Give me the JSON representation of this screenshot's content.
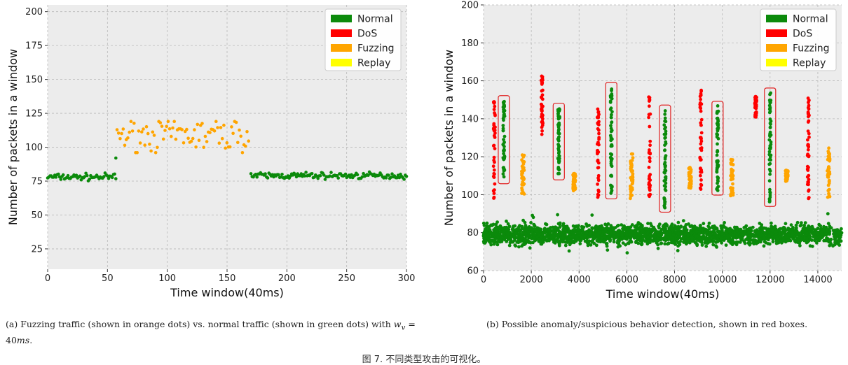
{
  "chart_data": [
    {
      "type": "scatter",
      "title": "",
      "xlabel": "Time window(40ms)",
      "ylabel": "Number of packets in a window",
      "xlim": [
        0,
        300
      ],
      "ylim": [
        10,
        205
      ],
      "xticks": [
        0,
        50,
        100,
        150,
        200,
        250,
        300
      ],
      "yticks": [
        25,
        50,
        75,
        100,
        125,
        150,
        175,
        200
      ],
      "grid": true,
      "legend": "top-right",
      "legend_entries": [
        "Normal",
        "DoS",
        "Fuzzing",
        "Replay"
      ],
      "colors": {
        "Normal": "#0b8a0b",
        "DoS": "#ff0000",
        "Fuzzing": "#ffa500",
        "Replay": "#ffff00"
      },
      "series": [
        {
          "name": "Normal",
          "x_range": [
            0,
            57
          ],
          "y_center": 78,
          "y_spread": 2,
          "count": 58,
          "extra_points": [
            [
              57,
              92
            ]
          ]
        },
        {
          "name": "Fuzzing",
          "x_range": [
            58,
            168
          ],
          "y_center": 109,
          "y_spread": 10,
          "count": 86,
          "y_min": 96,
          "y_max": 119
        },
        {
          "name": "Normal",
          "x_range": [
            170,
            300
          ],
          "y_center": 79,
          "y_spread": 2,
          "count": 131,
          "y_min": 75,
          "y_max": 82
        }
      ],
      "caption_text": "(a) Fuzzing traffic (shown in orange dots) vs. normal traffic (shown in green dots) with",
      "caption_math": "w",
      "caption_sub": "v",
      "caption_tail": " = 40",
      "caption_unit": "ms",
      "caption_end": "."
    },
    {
      "type": "scatter",
      "title": "",
      "xlabel": "Time window(40ms)",
      "ylabel": "Number of packets in a window",
      "xlim": [
        0,
        15000
      ],
      "ylim": [
        60,
        200
      ],
      "xticks": [
        0,
        2000,
        4000,
        6000,
        8000,
        10000,
        12000,
        14000
      ],
      "yticks": [
        60,
        80,
        100,
        120,
        140,
        160,
        180,
        200
      ],
      "grid": true,
      "legend": "top-right",
      "legend_entries": [
        "Normal",
        "DoS",
        "Fuzzing",
        "Replay"
      ],
      "colors": {
        "Normal": "#0b8a0b",
        "DoS": "#ff0000",
        "Fuzzing": "#ffa500",
        "Replay": "#ffff00"
      },
      "baseline": {
        "name": "Normal",
        "x_range": [
          0,
          15000
        ],
        "y_center": 79,
        "y_spread": 5
      },
      "clusters": [
        {
          "name": "DoS",
          "x": 450,
          "y_range": [
            97,
            150
          ]
        },
        {
          "name": "Normal",
          "x": 850,
          "y_range": [
            108,
            150
          ],
          "boxed": true
        },
        {
          "name": "Fuzzing",
          "x": 1650,
          "y_range": [
            100,
            121
          ]
        },
        {
          "name": "DoS",
          "x": 2450,
          "y_range": [
            131,
            164
          ]
        },
        {
          "name": "Normal",
          "x": 3150,
          "y_range": [
            110,
            146
          ],
          "boxed": true
        },
        {
          "name": "Fuzzing",
          "x": 3800,
          "y_range": [
            102,
            112
          ]
        },
        {
          "name": "DoS",
          "x": 4800,
          "y_range": [
            97,
            146
          ]
        },
        {
          "name": "Normal",
          "x": 5350,
          "y_range": [
            100,
            157
          ],
          "boxed": true
        },
        {
          "name": "Fuzzing",
          "x": 6200,
          "y_range": [
            98,
            122
          ]
        },
        {
          "name": "DoS",
          "x": 6950,
          "y_range": [
            97,
            154
          ]
        },
        {
          "name": "Normal",
          "x": 7600,
          "y_range": [
            93,
            145
          ],
          "boxed": true
        },
        {
          "name": "Fuzzing",
          "x": 8650,
          "y_range": [
            103,
            115
          ]
        },
        {
          "name": "DoS",
          "x": 9100,
          "y_range": [
            97,
            155
          ]
        },
        {
          "name": "Normal",
          "x": 9800,
          "y_range": [
            102,
            147
          ],
          "boxed": true
        },
        {
          "name": "Fuzzing",
          "x": 10400,
          "y_range": [
            99,
            119
          ]
        },
        {
          "name": "DoS",
          "x": 11400,
          "y_range": [
            140,
            152
          ]
        },
        {
          "name": "Normal",
          "x": 12000,
          "y_range": [
            96,
            154
          ],
          "boxed": true
        },
        {
          "name": "Fuzzing",
          "x": 12700,
          "y_range": [
            107,
            113
          ]
        },
        {
          "name": "DoS",
          "x": 13600,
          "y_range": [
            97,
            152
          ]
        },
        {
          "name": "Fuzzing",
          "x": 14450,
          "y_range": [
            98,
            125
          ]
        }
      ],
      "caption_text": "(b) Possible anomaly/suspicious behavior detection, shown in red boxes."
    }
  ],
  "figure_caption": "图 7. 不同类型攻击的可视化。"
}
